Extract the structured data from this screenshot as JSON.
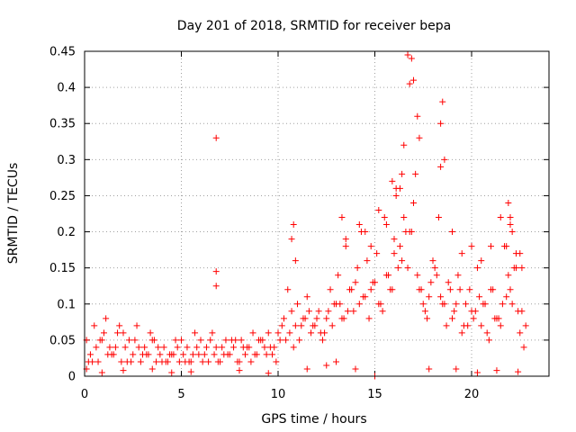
{
  "chart_data": {
    "type": "scatter",
    "title": "Day 201 of 2018, SRMTID for receiver bepa",
    "xlabel": "GPS time / hours",
    "ylabel": "SRMTID / TECUs",
    "xlim": [
      0,
      24
    ],
    "ylim": [
      0,
      0.45
    ],
    "x_ticks": [
      0,
      5,
      10,
      15,
      20
    ],
    "x_tick_labels": [
      "0",
      "5",
      "10",
      "15",
      "20"
    ],
    "y_ticks": [
      0,
      0.05,
      0.1,
      0.15,
      0.2,
      0.25,
      0.3,
      0.35,
      0.4,
      0.45
    ],
    "y_tick_labels": [
      "0",
      "0.05",
      "0.1",
      "0.15",
      "0.2",
      "0.25",
      "0.3",
      "0.35",
      "0.4",
      "0.45"
    ],
    "grid": true,
    "marker": "+",
    "color": "#ff0000",
    "series": [
      {
        "name": "SRMTID",
        "x": [
          0.1,
          0.3,
          0.5,
          0.7,
          0.9,
          1.1,
          1.3,
          1.5,
          1.7,
          1.9,
          2.1,
          2.3,
          2.5,
          2.7,
          2.9,
          3.1,
          3.3,
          3.5,
          3.7,
          3.9,
          4.1,
          4.3,
          4.5,
          4.7,
          4.9,
          5.1,
          5.3,
          5.5,
          5.7,
          5.9,
          6.1,
          6.3,
          6.5,
          6.7,
          6.9,
          7.1,
          7.3,
          7.5,
          7.7,
          7.9,
          8.1,
          8.3,
          8.5,
          8.7,
          8.9,
          9.1,
          9.3,
          9.5,
          9.7,
          9.9,
          10.1,
          10.3,
          10.5,
          10.7,
          10.9,
          11.1,
          11.3,
          11.5,
          11.7,
          11.9,
          12.1,
          12.3,
          12.5,
          12.7,
          12.9,
          13.1,
          13.3,
          13.5,
          13.7,
          13.9,
          14.1,
          14.3,
          14.5,
          14.7,
          14.9,
          15.1,
          15.3,
          15.5,
          15.7,
          15.9,
          16.1,
          16.3,
          16.5,
          16.7,
          16.9,
          17.1,
          17.3,
          17.5,
          17.7,
          17.9,
          18.1,
          18.3,
          18.5,
          18.7,
          18.9,
          19.1,
          19.3,
          19.5,
          19.7,
          19.9,
          20.1,
          20.3,
          20.5,
          20.7,
          20.9,
          21.1,
          21.3,
          21.5,
          21.7,
          21.9,
          22.1,
          22.3,
          22.5,
          22.7,
          0.2,
          0.6,
          1.0,
          1.4,
          1.8,
          2.2,
          2.6,
          3.0,
          3.4,
          3.8,
          4.2,
          4.6,
          5.0,
          5.4,
          5.8,
          6.2,
          6.6,
          7.0,
          7.4,
          7.8,
          8.2,
          8.6,
          9.0,
          9.4,
          9.8,
          10.2,
          10.6,
          11.0,
          11.4,
          11.8,
          12.2,
          12.6,
          13.0,
          13.4,
          13.8,
          14.2,
          14.6,
          15.0,
          15.4,
          15.8,
          16.2,
          16.6,
          17.0,
          17.4,
          17.8,
          18.2,
          18.6,
          19.0,
          19.4,
          19.8,
          20.2,
          20.6,
          21.0,
          21.4,
          21.8,
          22.2,
          22.6,
          0.4,
          0.8,
          1.2,
          1.6,
          2.0,
          2.4,
          2.8,
          3.2,
          3.6,
          4.0,
          4.4,
          4.8,
          5.2,
          5.6,
          6.0,
          6.4,
          6.8,
          7.2,
          7.6,
          8.0,
          8.4,
          8.8,
          9.2,
          9.6,
          10.0,
          10.4,
          10.8,
          11.2,
          11.6,
          12.0,
          12.4,
          12.8,
          13.2,
          13.6,
          14.0,
          14.4,
          14.8,
          15.2,
          15.6,
          16.0,
          16.4,
          16.8,
          17.2,
          17.6,
          18.0,
          18.4,
          18.8,
          19.2,
          19.6,
          20.0,
          20.4,
          20.8,
          21.2,
          21.6,
          22.0,
          22.4,
          22.8,
          6.8,
          6.8,
          6.8,
          16.7,
          16.9,
          17.0,
          16.8,
          18.5,
          18.4,
          18.6,
          18.4,
          17.2,
          17.3,
          16.5,
          16.3,
          16.4,
          15.9,
          16.1,
          21.9,
          22.0,
          22.1,
          21.8,
          22.3,
          22.6,
          10.8,
          10.7,
          10.9,
          13.3,
          13.5,
          14.2,
          14.5,
          14.8,
          15.2,
          15.6,
          16.0,
          19.0,
          19.5,
          20.0,
          20.5,
          21.0,
          21.5,
          22.0,
          22.5,
          0.1,
          0.9,
          2.0,
          3.5,
          4.5,
          5.5,
          8.0,
          9.5,
          11.5,
          12.5,
          13.0,
          14.0,
          15.0,
          17.8,
          19.2,
          20.3,
          21.3,
          22.4
        ],
        "y": [
          0.05,
          0.03,
          0.07,
          0.02,
          0.05,
          0.08,
          0.04,
          0.03,
          0.06,
          0.02,
          0.04,
          0.05,
          0.03,
          0.07,
          0.02,
          0.04,
          0.03,
          0.05,
          0.02,
          0.03,
          0.04,
          0.02,
          0.03,
          0.05,
          0.02,
          0.03,
          0.04,
          0.02,
          0.06,
          0.03,
          0.02,
          0.04,
          0.05,
          0.03,
          0.02,
          0.04,
          0.05,
          0.03,
          0.04,
          0.02,
          0.05,
          0.03,
          0.04,
          0.06,
          0.03,
          0.05,
          0.04,
          0.06,
          0.03,
          0.02,
          0.05,
          0.08,
          0.12,
          0.09,
          0.07,
          0.05,
          0.08,
          0.11,
          0.06,
          0.07,
          0.09,
          0.05,
          0.08,
          0.12,
          0.1,
          0.14,
          0.08,
          0.18,
          0.12,
          0.09,
          0.15,
          0.2,
          0.11,
          0.08,
          0.13,
          0.17,
          0.1,
          0.22,
          0.14,
          0.12,
          0.25,
          0.18,
          0.22,
          0.15,
          0.2,
          0.28,
          0.12,
          0.1,
          0.08,
          0.13,
          0.15,
          0.22,
          0.1,
          0.07,
          0.12,
          0.09,
          0.14,
          0.06,
          0.1,
          0.12,
          0.08,
          0.15,
          0.07,
          0.1,
          0.05,
          0.12,
          0.08,
          0.07,
          0.18,
          0.14,
          0.1,
          0.15,
          0.06,
          0.04,
          0.02,
          0.04,
          0.06,
          0.03,
          0.07,
          0.02,
          0.05,
          0.03,
          0.06,
          0.04,
          0.02,
          0.03,
          0.05,
          0.02,
          0.04,
          0.03,
          0.06,
          0.02,
          0.03,
          0.05,
          0.04,
          0.02,
          0.05,
          0.03,
          0.04,
          0.07,
          0.06,
          0.1,
          0.08,
          0.07,
          0.06,
          0.09,
          0.1,
          0.08,
          0.12,
          0.1,
          0.16,
          0.13,
          0.09,
          0.12,
          0.15,
          0.2,
          0.24,
          0.12,
          0.11,
          0.14,
          0.1,
          0.08,
          0.12,
          0.07,
          0.09,
          0.1,
          0.12,
          0.08,
          0.11,
          0.15,
          0.09,
          0.02,
          0.05,
          0.03,
          0.04,
          0.06,
          0.02,
          0.04,
          0.03,
          0.05,
          0.02,
          0.03,
          0.04,
          0.02,
          0.03,
          0.05,
          0.02,
          0.04,
          0.03,
          0.05,
          0.02,
          0.04,
          0.03,
          0.05,
          0.04,
          0.06,
          0.05,
          0.04,
          0.07,
          0.09,
          0.08,
          0.06,
          0.07,
          0.1,
          0.09,
          0.13,
          0.11,
          0.12,
          0.1,
          0.14,
          0.17,
          0.16,
          0.2,
          0.14,
          0.09,
          0.16,
          0.11,
          0.13,
          0.1,
          0.07,
          0.09,
          0.11,
          0.06,
          0.08,
          0.1,
          0.12,
          0.09,
          0.07,
          0.33,
          0.145,
          0.125,
          0.445,
          0.44,
          0.41,
          0.405,
          0.38,
          0.35,
          0.3,
          0.29,
          0.36,
          0.33,
          0.32,
          0.26,
          0.28,
          0.27,
          0.26,
          0.24,
          0.22,
          0.2,
          0.18,
          0.17,
          0.15,
          0.21,
          0.19,
          0.16,
          0.22,
          0.19,
          0.21,
          0.2,
          0.18,
          0.23,
          0.21,
          0.19,
          0.2,
          0.17,
          0.18,
          0.16,
          0.18,
          0.22,
          0.21,
          0.17,
          0.01,
          0.005,
          0.008,
          0.01,
          0.005,
          0.006,
          0.008,
          0.004,
          0.01,
          0.015,
          0.02,
          0.01,
          0.0,
          0.01,
          0.01,
          0.005,
          0.008,
          0.006
        ]
      }
    ]
  }
}
